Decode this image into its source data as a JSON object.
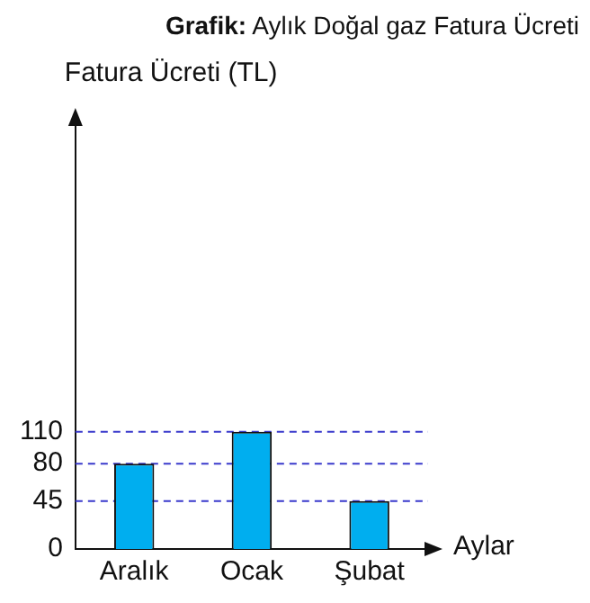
{
  "chart_data": {
    "type": "bar",
    "title": "Grafik: Aylık Doğal gaz Fatura Ücreti",
    "ylabel": "Fatura Ücreti (TL)",
    "xlabel": "Aylar",
    "categories": [
      "Aralık",
      "Ocak",
      "Şubat"
    ],
    "values": [
      80,
      110,
      45
    ],
    "color": "#00aeef",
    "ylim": [
      0,
      400
    ],
    "yticks": [
      0,
      45,
      80,
      110
    ],
    "grid": false,
    "ref_lines": [
      {
        "axis": "y",
        "value": 110,
        "color": "#3a3acc",
        "line_style": "dashed"
      },
      {
        "axis": "y",
        "value": 80,
        "color": "#3a3acc",
        "line_style": "dashed"
      },
      {
        "axis": "y",
        "value": 45,
        "color": "#3a3acc",
        "line_style": "dashed"
      }
    ]
  }
}
